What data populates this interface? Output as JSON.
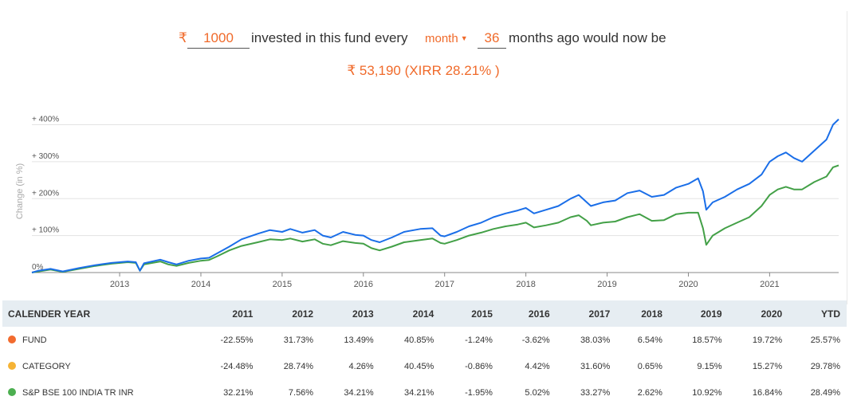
{
  "calculator": {
    "currency_symbol": "₹",
    "amount": "1000",
    "text_before_frequency": "invested in this fund every",
    "frequency": "month",
    "months": "36",
    "text_after_months": "months ago would now be",
    "result": "₹ 53,190 (XIRR 28.21% )"
  },
  "colors": {
    "accent": "#f06a2a",
    "fund_line": "#1a6ee8",
    "benchmark_line": "#43a047",
    "fund_dot": "#f26b2e",
    "category_dot": "#f5b335",
    "benchmark_dot": "#4caf50",
    "table_header_bg": "#e6edf2"
  },
  "chart_data": {
    "type": "line",
    "ylabel": "Change (in %)",
    "ylim": [
      0,
      440
    ],
    "xlim": [
      2011.92,
      2021.85
    ],
    "grid": true,
    "y_ticks": [
      {
        "value": 0,
        "label": "0%"
      },
      {
        "value": 100,
        "label": "+ 100%"
      },
      {
        "value": 200,
        "label": "+ 200%"
      },
      {
        "value": 300,
        "label": "+ 300%"
      },
      {
        "value": 400,
        "label": "+ 400%"
      }
    ],
    "x_ticks": [
      {
        "value": 2013,
        "label": "2013"
      },
      {
        "value": 2014,
        "label": "2014"
      },
      {
        "value": 2015,
        "label": "2015"
      },
      {
        "value": 2016,
        "label": "2016"
      },
      {
        "value": 2017,
        "label": "2017"
      },
      {
        "value": 2018,
        "label": "2018"
      },
      {
        "value": 2019,
        "label": "2019"
      },
      {
        "value": 2020,
        "label": "2020"
      },
      {
        "value": 2021,
        "label": "2021"
      }
    ],
    "series": [
      {
        "key": "fund",
        "color": "#1a6ee8",
        "points": [
          [
            2011.92,
            0
          ],
          [
            2012.0,
            5
          ],
          [
            2012.15,
            10
          ],
          [
            2012.3,
            3
          ],
          [
            2012.5,
            12
          ],
          [
            2012.7,
            20
          ],
          [
            2012.9,
            26
          ],
          [
            2013.1,
            30
          ],
          [
            2013.2,
            28
          ],
          [
            2013.25,
            5
          ],
          [
            2013.3,
            25
          ],
          [
            2013.5,
            35
          ],
          [
            2013.6,
            28
          ],
          [
            2013.7,
            22
          ],
          [
            2013.85,
            32
          ],
          [
            2014.0,
            38
          ],
          [
            2014.1,
            40
          ],
          [
            2014.2,
            52
          ],
          [
            2014.35,
            70
          ],
          [
            2014.5,
            90
          ],
          [
            2014.7,
            105
          ],
          [
            2014.85,
            115
          ],
          [
            2015.0,
            110
          ],
          [
            2015.1,
            118
          ],
          [
            2015.25,
            108
          ],
          [
            2015.4,
            115
          ],
          [
            2015.5,
            100
          ],
          [
            2015.6,
            95
          ],
          [
            2015.75,
            110
          ],
          [
            2015.9,
            102
          ],
          [
            2016.0,
            100
          ],
          [
            2016.1,
            88
          ],
          [
            2016.2,
            82
          ],
          [
            2016.35,
            95
          ],
          [
            2016.5,
            110
          ],
          [
            2016.7,
            118
          ],
          [
            2016.85,
            120
          ],
          [
            2016.95,
            100
          ],
          [
            2017.0,
            98
          ],
          [
            2017.15,
            110
          ],
          [
            2017.3,
            125
          ],
          [
            2017.45,
            135
          ],
          [
            2017.6,
            150
          ],
          [
            2017.75,
            160
          ],
          [
            2017.9,
            168
          ],
          [
            2018.0,
            175
          ],
          [
            2018.1,
            160
          ],
          [
            2018.25,
            170
          ],
          [
            2018.4,
            180
          ],
          [
            2018.55,
            200
          ],
          [
            2018.65,
            210
          ],
          [
            2018.75,
            190
          ],
          [
            2018.8,
            180
          ],
          [
            2018.95,
            190
          ],
          [
            2019.1,
            195
          ],
          [
            2019.25,
            215
          ],
          [
            2019.4,
            222
          ],
          [
            2019.55,
            205
          ],
          [
            2019.7,
            210
          ],
          [
            2019.85,
            230
          ],
          [
            2020.0,
            240
          ],
          [
            2020.12,
            255
          ],
          [
            2020.18,
            220
          ],
          [
            2020.22,
            170
          ],
          [
            2020.3,
            190
          ],
          [
            2020.45,
            205
          ],
          [
            2020.6,
            225
          ],
          [
            2020.75,
            240
          ],
          [
            2020.9,
            265
          ],
          [
            2021.0,
            300
          ],
          [
            2021.1,
            315
          ],
          [
            2021.2,
            325
          ],
          [
            2021.3,
            310
          ],
          [
            2021.4,
            300
          ],
          [
            2021.55,
            330
          ],
          [
            2021.7,
            360
          ],
          [
            2021.78,
            400
          ],
          [
            2021.85,
            415
          ]
        ]
      },
      {
        "key": "benchmark",
        "color": "#43a047",
        "points": [
          [
            2011.92,
            0
          ],
          [
            2012.0,
            3
          ],
          [
            2012.15,
            8
          ],
          [
            2012.3,
            2
          ],
          [
            2012.5,
            10
          ],
          [
            2012.7,
            18
          ],
          [
            2012.9,
            24
          ],
          [
            2013.1,
            28
          ],
          [
            2013.2,
            26
          ],
          [
            2013.25,
            5
          ],
          [
            2013.3,
            22
          ],
          [
            2013.5,
            30
          ],
          [
            2013.6,
            22
          ],
          [
            2013.7,
            18
          ],
          [
            2013.85,
            26
          ],
          [
            2014.0,
            32
          ],
          [
            2014.1,
            34
          ],
          [
            2014.2,
            44
          ],
          [
            2014.35,
            60
          ],
          [
            2014.5,
            72
          ],
          [
            2014.7,
            82
          ],
          [
            2014.85,
            90
          ],
          [
            2015.0,
            88
          ],
          [
            2015.1,
            92
          ],
          [
            2015.25,
            84
          ],
          [
            2015.4,
            90
          ],
          [
            2015.5,
            78
          ],
          [
            2015.6,
            74
          ],
          [
            2015.75,
            85
          ],
          [
            2015.9,
            80
          ],
          [
            2016.0,
            78
          ],
          [
            2016.1,
            66
          ],
          [
            2016.2,
            60
          ],
          [
            2016.35,
            70
          ],
          [
            2016.5,
            82
          ],
          [
            2016.7,
            88
          ],
          [
            2016.85,
            92
          ],
          [
            2016.95,
            80
          ],
          [
            2017.0,
            78
          ],
          [
            2017.15,
            88
          ],
          [
            2017.3,
            100
          ],
          [
            2017.45,
            108
          ],
          [
            2017.6,
            118
          ],
          [
            2017.75,
            125
          ],
          [
            2017.9,
            130
          ],
          [
            2018.0,
            135
          ],
          [
            2018.1,
            122
          ],
          [
            2018.25,
            128
          ],
          [
            2018.4,
            135
          ],
          [
            2018.55,
            150
          ],
          [
            2018.65,
            155
          ],
          [
            2018.75,
            140
          ],
          [
            2018.8,
            128
          ],
          [
            2018.95,
            135
          ],
          [
            2019.1,
            138
          ],
          [
            2019.25,
            150
          ],
          [
            2019.4,
            158
          ],
          [
            2019.55,
            140
          ],
          [
            2019.7,
            142
          ],
          [
            2019.85,
            158
          ],
          [
            2020.0,
            162
          ],
          [
            2020.12,
            162
          ],
          [
            2020.18,
            120
          ],
          [
            2020.22,
            75
          ],
          [
            2020.3,
            100
          ],
          [
            2020.45,
            120
          ],
          [
            2020.6,
            135
          ],
          [
            2020.75,
            150
          ],
          [
            2020.9,
            180
          ],
          [
            2021.0,
            210
          ],
          [
            2021.1,
            225
          ],
          [
            2021.2,
            232
          ],
          [
            2021.3,
            225
          ],
          [
            2021.4,
            225
          ],
          [
            2021.55,
            245
          ],
          [
            2021.7,
            260
          ],
          [
            2021.78,
            285
          ],
          [
            2021.85,
            290
          ]
        ]
      }
    ]
  },
  "table": {
    "header_label": "CALENDER YEAR",
    "years": [
      "2011",
      "2012",
      "2013",
      "2014",
      "2015",
      "2016",
      "2017",
      "2018",
      "2019",
      "2020",
      "YTD"
    ],
    "rows": [
      {
        "name": "FUND",
        "dot_color": "#f26b2e",
        "values": [
          "-22.55%",
          "31.73%",
          "13.49%",
          "40.85%",
          "-1.24%",
          "-3.62%",
          "38.03%",
          "6.54%",
          "18.57%",
          "19.72%",
          "25.57%"
        ]
      },
      {
        "name": "CATEGORY",
        "dot_color": "#f5b335",
        "values": [
          "-24.48%",
          "28.74%",
          "4.26%",
          "40.45%",
          "-0.86%",
          "4.42%",
          "31.60%",
          "0.65%",
          "9.15%",
          "15.27%",
          "29.78%"
        ]
      },
      {
        "name": "S&P BSE 100 INDIA TR INR",
        "dot_color": "#4caf50",
        "values": [
          "32.21%",
          "7.56%",
          "34.21%",
          "34.21%",
          "-1.95%",
          "5.02%",
          "33.27%",
          "2.62%",
          "10.92%",
          "16.84%",
          "28.49%"
        ]
      }
    ]
  }
}
